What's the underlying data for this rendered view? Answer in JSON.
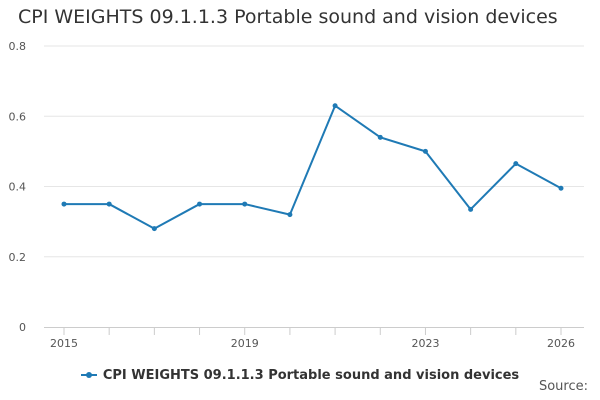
{
  "chart_data": {
    "type": "line",
    "title": "CPI WEIGHTS 09.1.1.3 Portable sound and vision devices",
    "xlabel": "",
    "ylabel": "",
    "x": [
      2015,
      2016,
      2017,
      2018,
      2019,
      2020,
      2021,
      2022,
      2023,
      2024,
      2025,
      2026
    ],
    "xticks": [
      2015,
      2019,
      2023,
      2026
    ],
    "xlim": [
      2015,
      2026
    ],
    "ylim": [
      0,
      0.8
    ],
    "yticks": [
      "0",
      "0.2",
      "0.4",
      "0.6",
      "0.8"
    ],
    "grid": true,
    "legend_position": "bottom-center",
    "series": [
      {
        "name": "CPI WEIGHTS 09.1.1.3 Portable sound and vision devices",
        "color": "#1f7ab5",
        "values": [
          0.35,
          0.35,
          0.28,
          0.35,
          0.35,
          0.32,
          0.63,
          0.54,
          0.5,
          0.335,
          0.465,
          0.395
        ]
      }
    ]
  },
  "footer": {
    "source_label": "Source:"
  }
}
